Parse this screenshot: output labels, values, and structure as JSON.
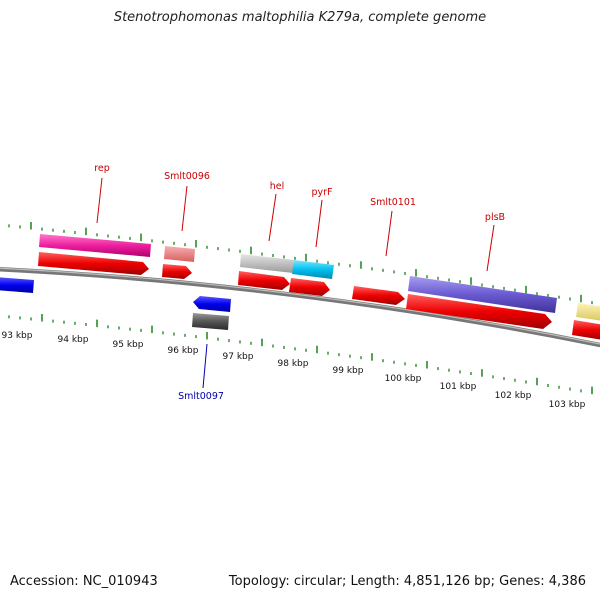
{
  "title": "Stenotrophomonas maltophilia K279a, complete genome",
  "footer": {
    "accession": "Accession: NC_010943",
    "stats": "Topology: circular; Length: 4,851,126 bp; Genes: 4,386"
  },
  "scale": {
    "unit": "kbp",
    "labels": [
      "93 kbp",
      "94 kbp",
      "95 kbp",
      "96 kbp",
      "97 kbp",
      "98 kbp",
      "99 kbp",
      "100 kbp",
      "101 kbp",
      "102 kbp",
      "103 kbp"
    ]
  },
  "genes": [
    {
      "name": "rep",
      "strand": "+",
      "color": "#cc0000"
    },
    {
      "name": "Smlt0096",
      "strand": "+",
      "color": "#cc0000"
    },
    {
      "name": "hel",
      "strand": "+",
      "color": "#cc0000"
    },
    {
      "name": "pyrF",
      "strand": "+",
      "color": "#cc0000"
    },
    {
      "name": "Smlt0101",
      "strand": "+",
      "color": "#cc0000"
    },
    {
      "name": "plsB",
      "strand": "+",
      "color": "#cc0000"
    },
    {
      "name": "Smlt0097",
      "strand": "-",
      "color": "#0000aa"
    }
  ],
  "colors": {
    "forward_cds": "#ee0000",
    "reverse_cds": "#0000ee",
    "backbone": "#888888",
    "ticks": "#2a8a2a"
  }
}
